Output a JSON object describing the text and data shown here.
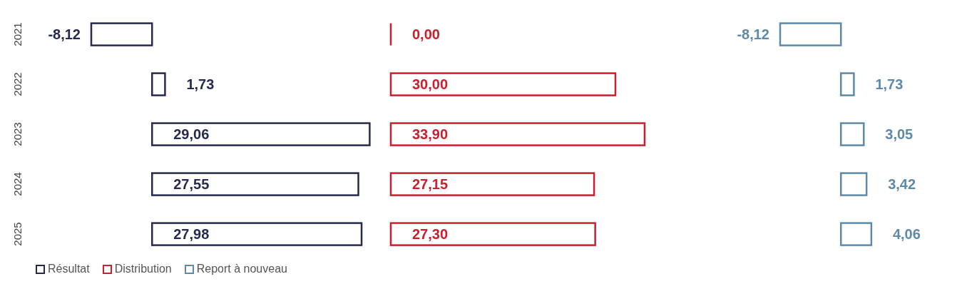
{
  "chart_data": [
    {
      "type": "bar",
      "orientation": "horizontal",
      "categories": [
        "2021",
        "2022",
        "2023",
        "2024",
        "2025"
      ],
      "series": [
        {
          "name": "Résultat",
          "color": "#262a4f",
          "values": [
            -8.12,
            1.73,
            29.06,
            27.55,
            27.98
          ],
          "value_labels": [
            "-8,12",
            "1,73",
            "29,06",
            "27,55",
            "27,98"
          ]
        }
      ],
      "tick_labels": "y",
      "legend": "bottom"
    },
    {
      "type": "bar",
      "orientation": "horizontal",
      "categories": [
        "2021",
        "2022",
        "2023",
        "2024",
        "2025"
      ],
      "series": [
        {
          "name": "Distribution",
          "color": "#c8202f",
          "values": [
            0,
            30,
            33.9,
            27.15,
            27.3
          ],
          "value_labels": [
            "0,00",
            "30,00",
            "33,90",
            "27,15",
            "27,30"
          ]
        }
      ],
      "tick_labels": false,
      "legend": "bottom"
    },
    {
      "type": "bar",
      "orientation": "horizontal",
      "categories": [
        "2021",
        "2022",
        "2023",
        "2024",
        "2025"
      ],
      "series": [
        {
          "name": "Report à nouveau",
          "color": "#5e8aa8",
          "values": [
            -8.12,
            1.73,
            3.05,
            3.42,
            4.06
          ],
          "value_labels": [
            "-8,12",
            "1,73",
            "3,05",
            "3,42",
            "4,06"
          ]
        }
      ],
      "tick_labels": false,
      "legend": "bottom"
    }
  ]
}
